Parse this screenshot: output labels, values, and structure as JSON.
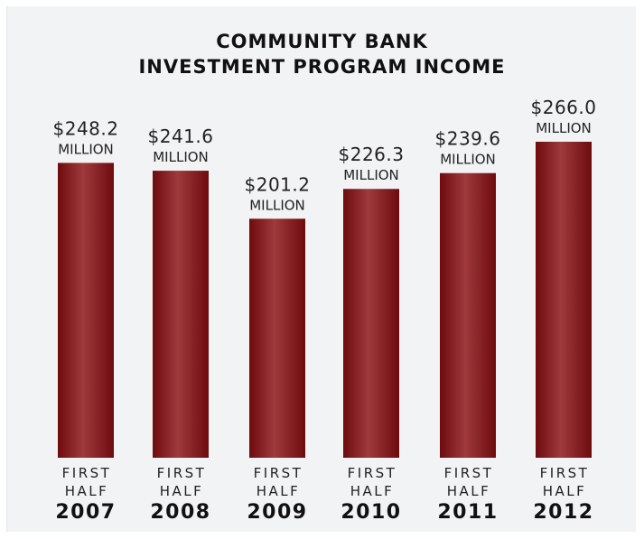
{
  "chart_data": {
    "type": "bar",
    "title_line1": "COMMUNITY BANK",
    "title_line2": "INVESTMENT PROGRAM INCOME",
    "categories": [
      {
        "line1": "FIRST",
        "line2": "HALF",
        "year": "2007"
      },
      {
        "line1": "FIRST",
        "line2": "HALF",
        "year": "2008"
      },
      {
        "line1": "FIRST",
        "line2": "HALF",
        "year": "2009"
      },
      {
        "line1": "FIRST",
        "line2": "HALF",
        "year": "2010"
      },
      {
        "line1": "FIRST",
        "line2": "HALF",
        "year": "2011"
      },
      {
        "line1": "FIRST",
        "line2": "HALF",
        "year": "2012"
      }
    ],
    "values": [
      248.2,
      241.6,
      201.2,
      226.3,
      239.6,
      266.0
    ],
    "value_labels": [
      "$248.2",
      "$241.6",
      "$201.2",
      "$226.3",
      "$239.6",
      "$266.0"
    ],
    "unit_label": "MILLION",
    "ylim": [
      0,
      266.0
    ],
    "grid": false,
    "colors": {
      "bar_dark": "#6e0b0e",
      "bar_mid": "#9e3a3c",
      "background": "#f2f3f5"
    }
  }
}
